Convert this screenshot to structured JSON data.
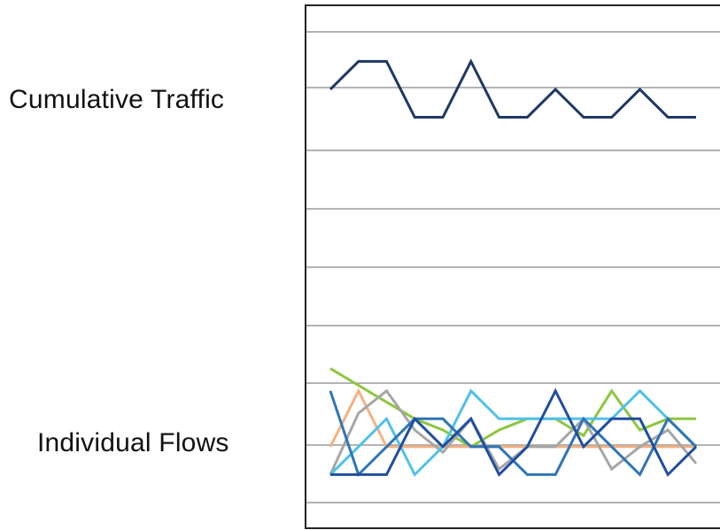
{
  "chart_data": {
    "type": "line",
    "title": "",
    "xlabel": "",
    "ylabel": "",
    "grid": true,
    "row_labels": {
      "top": "Cumulative Traffic",
      "bottom": "Individual Flows"
    },
    "x": [
      0,
      1,
      2,
      3,
      4,
      5,
      6,
      7,
      8,
      9,
      10,
      11,
      12,
      13
    ],
    "ylim": [
      0,
      9
    ],
    "series": [
      {
        "group": "cumulative",
        "color": "#1f3864",
        "values": [
          7.4,
          7.9,
          7.9,
          6.9,
          6.9,
          7.9,
          6.9,
          6.9,
          7.4,
          6.9,
          6.9,
          7.4,
          6.9,
          6.9
        ]
      },
      {
        "group": "individual",
        "color": "#8dc63f",
        "values": [
          2.4,
          2.1,
          1.8,
          1.5,
          1.3,
          1.0,
          1.3,
          1.5,
          1.5,
          1.2,
          2.0,
          1.3,
          1.5,
          1.5
        ]
      },
      {
        "group": "individual",
        "color": "#f4b183",
        "values": [
          1.0,
          2.0,
          1.0,
          1.0,
          1.0,
          1.0,
          1.0,
          1.0,
          1.0,
          1.0,
          1.0,
          1.0,
          1.0,
          1.0
        ]
      },
      {
        "group": "individual",
        "color": "#a6a6a6",
        "values": [
          0.5,
          1.6,
          2.0,
          1.3,
          0.9,
          1.5,
          0.6,
          1.0,
          1.0,
          1.5,
          0.6,
          1.0,
          1.3,
          0.7
        ]
      },
      {
        "group": "individual",
        "color": "#4fc1e9",
        "values": [
          0.5,
          1.0,
          1.5,
          0.5,
          1.0,
          2.0,
          1.5,
          1.5,
          1.5,
          1.5,
          1.5,
          2.0,
          1.5,
          1.0
        ]
      },
      {
        "group": "individual",
        "color": "#2e75b6",
        "values": [
          2.0,
          0.5,
          1.0,
          1.5,
          1.5,
          1.0,
          1.0,
          0.5,
          0.5,
          1.5,
          1.0,
          0.5,
          1.5,
          1.0
        ]
      },
      {
        "group": "individual",
        "color": "#1f4e9f",
        "values": [
          0.5,
          0.5,
          0.5,
          1.5,
          1.0,
          1.5,
          0.5,
          1.0,
          2.0,
          1.0,
          1.5,
          1.5,
          0.5,
          1.0
        ]
      }
    ]
  }
}
